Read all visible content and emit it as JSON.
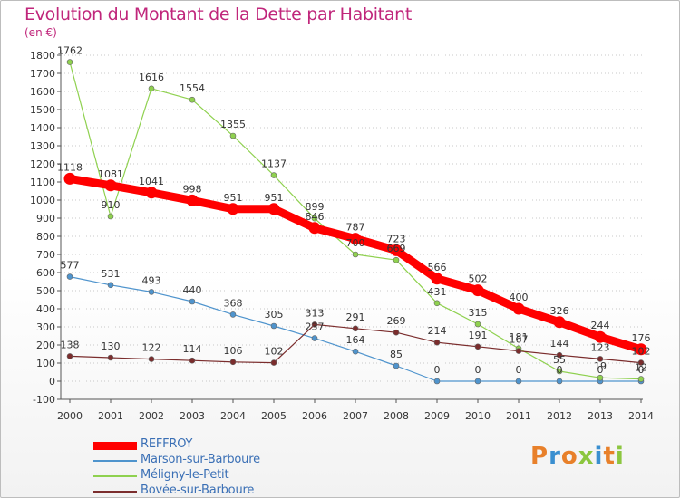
{
  "header": {
    "title": "Evolution du Montant de la Dette par Habitant",
    "subtitle": "(en €)"
  },
  "colors": {
    "title": "#c0267b",
    "axis_text": "#333333",
    "grid": "#c8c8c8"
  },
  "logo": {
    "text": "Proxiti",
    "letters": [
      {
        "ch": "P",
        "color": "#e8802a"
      },
      {
        "ch": "r",
        "color": "#3a8fd0"
      },
      {
        "ch": "o",
        "color": "#e8802a"
      },
      {
        "ch": "x",
        "color": "#8cc63f"
      },
      {
        "ch": "i",
        "color": "#3a8fd0"
      },
      {
        "ch": "t",
        "color": "#e8802a"
      },
      {
        "ch": "i",
        "color": "#8cc63f"
      }
    ]
  },
  "chart_data": {
    "type": "line",
    "title": "Evolution du Montant de la Dette par Habitant",
    "subtitle": "(en €)",
    "xlabel": "",
    "ylabel": "",
    "x": [
      "2000",
      "2001",
      "2002",
      "2003",
      "2004",
      "2005",
      "2006",
      "2007",
      "2008",
      "2009",
      "2010",
      "2011",
      "2012",
      "2013",
      "2014"
    ],
    "ylim": [
      -100,
      1800
    ],
    "yticks": [
      -100,
      0,
      100,
      200,
      300,
      400,
      500,
      600,
      700,
      800,
      900,
      1000,
      1100,
      1200,
      1300,
      1400,
      1500,
      1600,
      1700,
      1800
    ],
    "grid": "horizontal dotted",
    "legend_position": "bottom-left",
    "series": [
      {
        "name": "REFFROY",
        "color": "#ff0000",
        "stroke_style": "thick",
        "values": [
          1118,
          1081,
          1041,
          998,
          951,
          951,
          846,
          787,
          723,
          566,
          502,
          400,
          326,
          244,
          176
        ],
        "labels": [
          "1118",
          "1081",
          "1041",
          "998",
          "951",
          "951",
          "846",
          "787",
          "723",
          "566",
          "502",
          "400",
          "326",
          "244",
          "176"
        ]
      },
      {
        "name": "Marson-sur-Barboure",
        "color": "#4f94cd",
        "stroke_style": "thin",
        "values": [
          577,
          531,
          493,
          440,
          368,
          305,
          237,
          164,
          85,
          0,
          0,
          0,
          0,
          0,
          0
        ],
        "labels": [
          "577",
          "531",
          "493",
          "440",
          "368",
          "305",
          "237",
          "164",
          "85",
          "0",
          "0",
          "0",
          "0",
          "0",
          "0"
        ]
      },
      {
        "name": "Méligny-le-Petit",
        "color": "#8fd14f",
        "stroke_style": "thin",
        "values": [
          1762,
          910,
          1616,
          1554,
          1355,
          1137,
          899,
          700,
          669,
          431,
          315,
          181,
          55,
          19,
          12
        ],
        "labels": [
          "1762",
          "910",
          "1616",
          "1554",
          "1355",
          "1137",
          "899",
          "700",
          "669",
          "431",
          "315",
          "181",
          "55",
          "19",
          "12"
        ]
      },
      {
        "name": "Bovée-sur-Barboure",
        "color": "#7b2d2d",
        "stroke_style": "thin",
        "values": [
          138,
          130,
          122,
          114,
          106,
          102,
          313,
          291,
          269,
          214,
          191,
          167,
          144,
          123,
          102
        ],
        "labels": [
          "138",
          "130",
          "122",
          "114",
          "106",
          "102",
          "313",
          "291",
          "269",
          "214",
          "191",
          "167",
          "144",
          "123",
          "102"
        ]
      }
    ]
  }
}
